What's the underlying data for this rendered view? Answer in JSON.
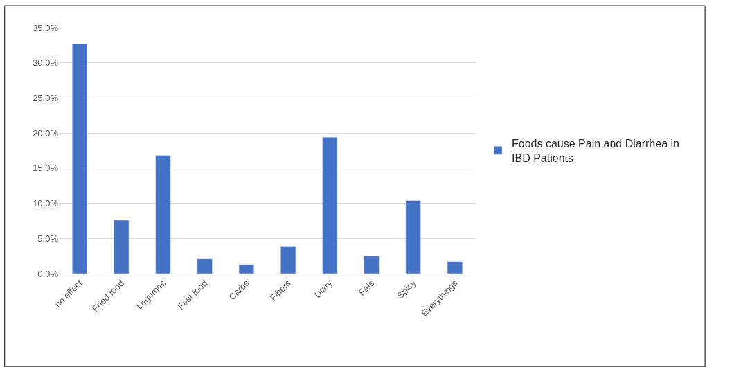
{
  "chart_data": {
    "type": "bar",
    "categories": [
      "no effect",
      "Fried food",
      "Legumes",
      "Fast food",
      "Carbs",
      "Fibers",
      "Diary",
      "Fats",
      "Spicy",
      "Everythings"
    ],
    "series": [
      {
        "name": "Foods cause Pain and Diarrhea in IBD Patients",
        "color": "#4472c4",
        "values": [
          32.7,
          7.6,
          16.8,
          2.1,
          1.3,
          3.9,
          19.4,
          2.5,
          10.4,
          1.7
        ]
      }
    ],
    "ylim": [
      0,
      35
    ],
    "yticks": [
      {
        "value": 0,
        "label": "0.0%"
      },
      {
        "value": 5,
        "label": "5.0%"
      },
      {
        "value": 10,
        "label": "10.0%"
      },
      {
        "value": 15,
        "label": "15.0%"
      },
      {
        "value": 20,
        "label": "20.0%"
      },
      {
        "value": 25,
        "label": "25.0%"
      },
      {
        "value": 30,
        "label": "30.0%"
      },
      {
        "value": 35,
        "label": "35.0%"
      }
    ],
    "grid": "y",
    "legend": "right"
  }
}
